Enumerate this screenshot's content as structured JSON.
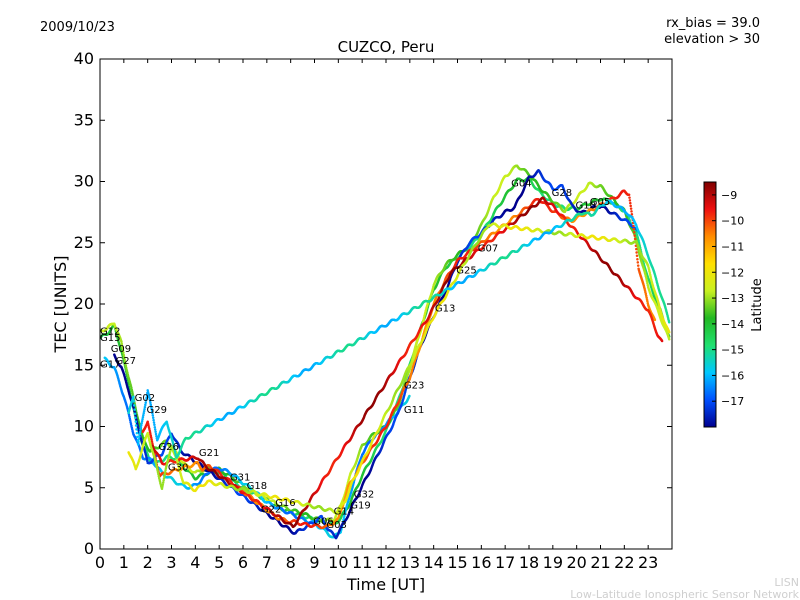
{
  "header": {
    "date": "2009/10/23",
    "title": "CUZCO, Peru",
    "rx_bias": "rx_bias = 39.0",
    "elevation": "elevation > 30"
  },
  "footer": {
    "watermark_short": "LISN",
    "watermark_long": "Low-Latitude Ionospheric Sensor Network"
  },
  "colorbar": {
    "label": "Latitude",
    "ticks": [
      "−9",
      "−10",
      "−11",
      "−12",
      "−13",
      "−14",
      "−15",
      "−16",
      "−17"
    ],
    "range": [
      -18,
      -8.5
    ],
    "colors": [
      "#00008f",
      "#0050ff",
      "#00c8ff",
      "#20e070",
      "#22b822",
      "#c8f020",
      "#ffe000",
      "#ff8c00",
      "#ee1010",
      "#800000"
    ]
  },
  "chart_data": {
    "type": "scatter",
    "title": "CUZCO, Peru",
    "xlabel": "Time [UT]",
    "ylabel": "TEC [UNITS]",
    "xlim": [
      0,
      24
    ],
    "ylim": [
      0,
      40
    ],
    "xticks": [
      "0",
      "1",
      "2",
      "3",
      "4",
      "5",
      "6",
      "7",
      "8",
      "9",
      "10",
      "11",
      "12",
      "13",
      "14",
      "15",
      "16",
      "17",
      "18",
      "19",
      "20",
      "21",
      "22",
      "23"
    ],
    "yticks": [
      "0",
      "5",
      "10",
      "15",
      "20",
      "25",
      "30",
      "35",
      "40"
    ],
    "grid": false,
    "series": [
      {
        "lat": -14.5,
        "x": [
          0.0,
          0.3,
          0.6,
          0.9,
          1.2,
          1.5,
          1.8,
          2.1,
          2.4,
          2.8,
          3.2,
          3.6,
          4.0,
          4.5,
          5.0,
          5.5,
          6.0,
          6.5,
          7.0,
          7.5,
          8.0,
          8.5,
          9.0,
          9.4,
          9.8,
          10.1,
          10.5,
          11.0,
          11.5,
          12.0,
          12.5,
          13.0,
          13.5,
          14.0,
          14.5,
          15.0,
          15.5,
          16.0,
          16.5,
          17.0,
          17.5,
          18.0,
          18.5,
          19.0,
          19.5,
          20.0,
          20.5,
          21.0,
          21.5,
          22.0,
          22.5,
          23.0,
          23.5,
          23.9
        ],
        "y": [
          17.2,
          17.6,
          18.2,
          16.2,
          13.5,
          10.5,
          8.5,
          7.2,
          7.0,
          7.5,
          7.4,
          6.5,
          5.8,
          6.2,
          6.3,
          5.6,
          5.0,
          4.5,
          4.0,
          3.4,
          3.0,
          2.7,
          2.4,
          2.1,
          2.0,
          2.5,
          3.8,
          6.0,
          7.8,
          9.6,
          12.0,
          15.0,
          18.3,
          21.2,
          23.0,
          23.8,
          24.6,
          25.7,
          27.3,
          28.8,
          30.1,
          30.2,
          29.0,
          28.2,
          27.8,
          27.8,
          28.2,
          28.6,
          28.3,
          27.6,
          25.8,
          22.0,
          19.5,
          17.2
        ]
      },
      {
        "lat": -13.2,
        "x": [
          0.0,
          0.3,
          0.6,
          0.9,
          1.2,
          1.5,
          1.8,
          2.1,
          2.4,
          2.8,
          3.2,
          3.6,
          4.0,
          4.5,
          5.0,
          5.5,
          6.0,
          6.5,
          7.0,
          7.5,
          8.0,
          8.5,
          9.0,
          9.4,
          9.8,
          10.1,
          10.5,
          11.0,
          11.5,
          12.0,
          12.5,
          13.0,
          13.5,
          14.0,
          14.5,
          15.0,
          15.5,
          16.0,
          16.5,
          17.0,
          17.5,
          18.0,
          18.5,
          19.0,
          19.5,
          20.0,
          20.5,
          21.0,
          21.5,
          22.0,
          22.5,
          23.0,
          23.5,
          23.9
        ],
        "y": [
          17.8,
          18.0,
          18.5,
          16.8,
          14.0,
          11.5,
          9.0,
          8.0,
          8.3,
          8.8,
          7.8,
          6.8,
          6.2,
          6.6,
          6.5,
          5.9,
          5.2,
          4.6,
          4.1,
          3.6,
          3.2,
          2.9,
          2.5,
          2.3,
          2.4,
          3.5,
          6.0,
          8.4,
          9.4,
          10.0,
          11.6,
          14.8,
          18.2,
          21.6,
          23.2,
          24.0,
          24.8,
          26.4,
          28.6,
          30.4,
          31.3,
          30.6,
          29.4,
          28.4,
          27.6,
          28.6,
          29.8,
          29.6,
          28.6,
          27.6,
          25.2,
          21.4,
          19.0,
          17.0
        ]
      },
      {
        "lat": -16.2,
        "x": [
          0.2,
          0.6,
          1.0,
          1.4,
          1.8,
          2.2,
          2.6,
          3.0,
          3.4,
          3.8,
          4.2,
          4.6,
          5.0,
          5.5,
          6.0,
          6.5,
          7.0,
          7.5,
          8.0,
          8.5,
          9.0,
          9.5,
          9.8,
          10.1,
          10.5,
          11.0,
          11.5,
          12.0,
          12.5,
          13.0
        ],
        "y": [
          15.5,
          14.8,
          12.5,
          9.5,
          7.5,
          7.2,
          6.2,
          5.7,
          5.2,
          5.0,
          5.5,
          6.4,
          6.6,
          6.2,
          5.4,
          4.7,
          3.8,
          3.3,
          2.9,
          2.4,
          2.1,
          1.4,
          0.9,
          1.5,
          4.5,
          7.8,
          9.2,
          10.2,
          11.2,
          12.5
        ]
      },
      {
        "lat": -17.6,
        "x": [
          0.6,
          0.9,
          1.2,
          2.0,
          2.6,
          3.0,
          3.4,
          8.0,
          8.2,
          9.3,
          9.6,
          9.9,
          10.2,
          12.5,
          13.0,
          13.5,
          14.0,
          14.5,
          15.0,
          15.5,
          16.0,
          16.5,
          17.0,
          17.4,
          18.0,
          18.4,
          19.0,
          19.4,
          19.8,
          20.2,
          20.6,
          21.0,
          22.3,
          22.6
        ],
        "y": [
          15.8,
          14.8,
          13.0,
          7.0,
          7.8,
          9.5,
          8.0,
          1.5,
          1.3,
          2.6,
          1.5,
          1.0,
          2.0,
          11.0,
          14.0,
          16.8,
          19.0,
          21.0,
          23.5,
          25.0,
          25.8,
          26.8,
          27.5,
          27.9,
          30.3,
          30.8,
          29.4,
          29.6,
          28.0,
          27.4,
          27.8,
          28.0,
          26.5,
          25.8
        ]
      },
      {
        "lat": -10.2,
        "x": [
          1.8,
          2.0,
          2.2,
          2.5,
          4.1,
          4.3,
          4.6,
          7.4,
          7.8,
          8.2,
          8.6,
          9.0,
          9.5,
          10.0,
          10.4,
          11.0,
          12.0,
          13.0,
          13.5,
          14.0,
          14.5,
          15.0,
          18.4,
          18.7,
          19.0,
          19.5,
          19.8,
          21.8,
          22.0,
          22.2,
          22.6,
          23.0,
          23.3
        ],
        "y": [
          9.5,
          10.5,
          8.5,
          6.0,
          7.0,
          6.5,
          6.8,
          2.6,
          2.3,
          2.2,
          2.0,
          1.9,
          1.8,
          2.4,
          5.0,
          7.0,
          10.0,
          14.0,
          17.0,
          20.0,
          22.0,
          23.5,
          28.6,
          28.1,
          27.6,
          27.0,
          26.8,
          28.9,
          29.2,
          29.0,
          23.0,
          20.0,
          18.5
        ]
      },
      {
        "lat": -9.2,
        "x": [
          2.2,
          2.6,
          4.1,
          4.4,
          8.1,
          13.8,
          14.2,
          14.7,
          15.0,
          15.3,
          18.6,
          19.0,
          23.0,
          23.2,
          23.4,
          23.6
        ],
        "y": [
          8.5,
          7.0,
          7.5,
          6.8,
          1.8,
          19.0,
          20.5,
          22.5,
          23.0,
          23.5,
          28.6,
          28.0,
          19.5,
          18.5,
          17.5,
          16.8
        ]
      },
      {
        "lat": -12.5,
        "x": [
          1.2,
          1.5,
          2.0,
          2.6,
          3.0,
          3.5,
          4.0,
          4.5,
          10.0,
          10.3,
          10.6,
          13.0,
          13.5,
          14.0,
          15.8,
          16.0,
          16.3,
          22.5,
          23.0,
          23.5,
          23.9
        ],
        "y": [
          8.0,
          6.5,
          9.5,
          5.0,
          8.5,
          5.5,
          4.8,
          5.5,
          3.0,
          4.0,
          5.5,
          15.0,
          17.0,
          19.0,
          25.0,
          25.5,
          26.5,
          25.0,
          23.0,
          19.5,
          17.5
        ]
      },
      {
        "lat": -15.6,
        "x": [
          1.2,
          1.4,
          1.6,
          2.0,
          2.4,
          2.8,
          3.2,
          3.6,
          20.3,
          20.6,
          20.9,
          21.3,
          21.7,
          22.1,
          22.5,
          23.0,
          23.5,
          23.9
        ],
        "y": [
          11.0,
          12.5,
          8.5,
          13.0,
          9.0,
          10.5,
          7.5,
          9.0,
          27.5,
          27.2,
          27.8,
          28.4,
          28.0,
          27.5,
          26.5,
          24.0,
          21.0,
          18.5
        ]
      }
    ],
    "satellite_labels": [
      {
        "x": 0.0,
        "y": 17.5,
        "text": "G12"
      },
      {
        "x": 0.0,
        "y": 17.0,
        "text": "G15"
      },
      {
        "x": 0.45,
        "y": 16.1,
        "text": "G09"
      },
      {
        "x": 0.65,
        "y": 15.1,
        "text": "G27"
      },
      {
        "x": 0.0,
        "y": 14.8,
        "text": "G17"
      },
      {
        "x": 1.45,
        "y": 12.1,
        "text": "G02"
      },
      {
        "x": 1.95,
        "y": 11.1,
        "text": "G29"
      },
      {
        "x": 2.45,
        "y": 8.1,
        "text": "G26"
      },
      {
        "x": 2.85,
        "y": 6.4,
        "text": "G30"
      },
      {
        "x": 4.15,
        "y": 7.6,
        "text": "G21"
      },
      {
        "x": 5.45,
        "y": 5.6,
        "text": "G31"
      },
      {
        "x": 6.15,
        "y": 4.9,
        "text": "G18"
      },
      {
        "x": 7.35,
        "y": 3.5,
        "text": "G16"
      },
      {
        "x": 6.75,
        "y": 3.0,
        "text": "G22"
      },
      {
        "x": 8.95,
        "y": 2.0,
        "text": "G06"
      },
      {
        "x": 9.5,
        "y": 1.7,
        "text": "G03"
      },
      {
        "x": 9.8,
        "y": 2.8,
        "text": "G14"
      },
      {
        "x": 10.5,
        "y": 3.3,
        "text": "G19"
      },
      {
        "x": 10.65,
        "y": 4.2,
        "text": "G32"
      },
      {
        "x": 12.75,
        "y": 11.1,
        "text": "G11"
      },
      {
        "x": 12.75,
        "y": 13.1,
        "text": "G23"
      },
      {
        "x": 14.05,
        "y": 19.4,
        "text": "G13"
      },
      {
        "x": 14.95,
        "y": 22.5,
        "text": "G25"
      },
      {
        "x": 15.85,
        "y": 24.3,
        "text": "G07"
      },
      {
        "x": 17.25,
        "y": 29.6,
        "text": "G04"
      },
      {
        "x": 18.95,
        "y": 28.8,
        "text": "G28"
      },
      {
        "x": 19.95,
        "y": 27.8,
        "text": "G10"
      },
      {
        "x": 20.55,
        "y": 28.1,
        "text": "G05"
      }
    ]
  }
}
